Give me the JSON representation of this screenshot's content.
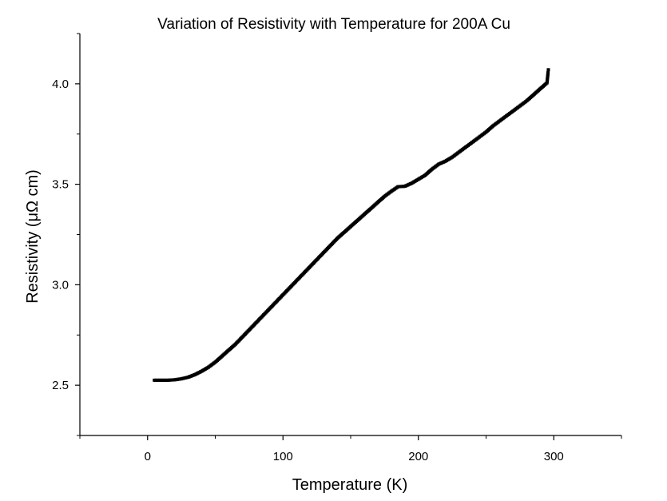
{
  "chart_data": {
    "type": "scatter",
    "title": "Variation of Resistivity with Temperature for 200A Cu",
    "xlabel": "Temperature (K)",
    "ylabel": "Resistivity (μΩ cm)",
    "xlim": [
      -50,
      350
    ],
    "ylim": [
      2.25,
      4.25
    ],
    "xticks": [
      0,
      100,
      200,
      300
    ],
    "xtick_labels": [
      "0",
      "100",
      "200",
      "300"
    ],
    "yticks": [
      2.5,
      3.0,
      3.5,
      4.0
    ],
    "ytick_labels": [
      "2.5",
      "3.0",
      "3.5",
      "4.0"
    ],
    "grid": false,
    "legend": "none",
    "series": [
      {
        "x": [
          5,
          10,
          15,
          20,
          25,
          30,
          35,
          40,
          45,
          50,
          55,
          60,
          65,
          70,
          75,
          80,
          85,
          90,
          95,
          100,
          105,
          110,
          115,
          120,
          125,
          130,
          135,
          140,
          145,
          150,
          155,
          160,
          165,
          170,
          175,
          180,
          185,
          190,
          195,
          200,
          205,
          210,
          215,
          220,
          225,
          230,
          235,
          240,
          245,
          250,
          255,
          260,
          265,
          270,
          275,
          280,
          285,
          290,
          295,
          296
        ],
        "y": [
          2.525,
          2.525,
          2.525,
          2.527,
          2.532,
          2.54,
          2.553,
          2.57,
          2.59,
          2.615,
          2.645,
          2.675,
          2.705,
          2.74,
          2.775,
          2.81,
          2.845,
          2.88,
          2.915,
          2.95,
          2.985,
          3.02,
          3.055,
          3.09,
          3.125,
          3.16,
          3.195,
          3.23,
          3.26,
          3.29,
          3.32,
          3.35,
          3.38,
          3.41,
          3.44,
          3.465,
          3.488,
          3.49,
          3.505,
          3.525,
          3.545,
          3.575,
          3.6,
          3.615,
          3.635,
          3.66,
          3.685,
          3.71,
          3.735,
          3.76,
          3.79,
          3.815,
          3.84,
          3.865,
          3.89,
          3.915,
          3.945,
          3.975,
          4.005,
          4.07
        ]
      }
    ]
  }
}
